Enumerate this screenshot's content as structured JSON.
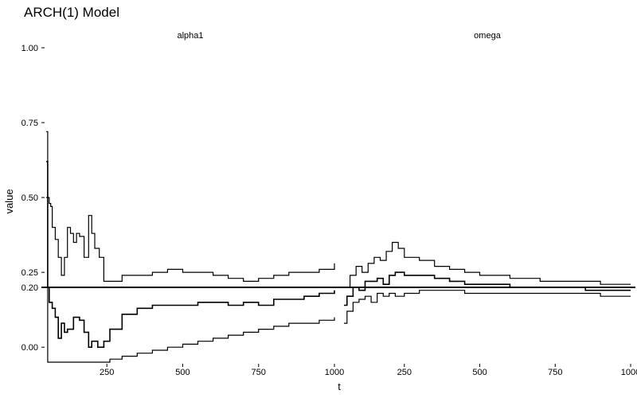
{
  "chart_data": {
    "type": "line",
    "title": "ARCH(1) Model",
    "xlabel": "t",
    "ylabel": "value",
    "xlim": [
      50,
      1000
    ],
    "ylim": [
      -0.05,
      1.0
    ],
    "x_ticks": [
      250,
      500,
      750,
      1000
    ],
    "y_tick_values": [
      0.0,
      0.2,
      0.25,
      0.5,
      0.75,
      1.0
    ],
    "y_tick_labels": [
      "0.00",
      "0.20",
      "0.25",
      "0.50",
      "0.75",
      "1.00"
    ],
    "reference_line": 0.2,
    "grid": false,
    "facets": [
      {
        "label": "alpha1",
        "series": [
          {
            "role": "upper",
            "points": [
              [
                50,
                0.72
              ],
              [
                55,
                0.5
              ],
              [
                60,
                0.48
              ],
              [
                65,
                0.47
              ],
              [
                70,
                0.4
              ],
              [
                80,
                0.36
              ],
              [
                90,
                0.3
              ],
              [
                100,
                0.24
              ],
              [
                110,
                0.3
              ],
              [
                120,
                0.4
              ],
              [
                130,
                0.38
              ],
              [
                140,
                0.35
              ],
              [
                150,
                0.38
              ],
              [
                160,
                0.37
              ],
              [
                175,
                0.3
              ],
              [
                190,
                0.44
              ],
              [
                200,
                0.38
              ],
              [
                210,
                0.33
              ],
              [
                225,
                0.3
              ],
              [
                240,
                0.22
              ],
              [
                250,
                0.22
              ],
              [
                270,
                0.22
              ],
              [
                300,
                0.24
              ],
              [
                350,
                0.24
              ],
              [
                400,
                0.25
              ],
              [
                450,
                0.26
              ],
              [
                500,
                0.25
              ],
              [
                550,
                0.25
              ],
              [
                600,
                0.24
              ],
              [
                650,
                0.23
              ],
              [
                700,
                0.22
              ],
              [
                750,
                0.23
              ],
              [
                800,
                0.24
              ],
              [
                850,
                0.25
              ],
              [
                900,
                0.25
              ],
              [
                950,
                0.26
              ],
              [
                1000,
                0.28
              ]
            ]
          },
          {
            "role": "estimate",
            "points": [
              [
                50,
                0.62
              ],
              [
                55,
                0.2
              ],
              [
                60,
                0.15
              ],
              [
                70,
                0.13
              ],
              [
                80,
                0.1
              ],
              [
                90,
                0.03
              ],
              [
                100,
                0.08
              ],
              [
                110,
                0.05
              ],
              [
                120,
                0.06
              ],
              [
                140,
                0.1
              ],
              [
                160,
                0.09
              ],
              [
                175,
                0.05
              ],
              [
                190,
                0.0
              ],
              [
                200,
                0.02
              ],
              [
                220,
                0.0
              ],
              [
                240,
                0.02
              ],
              [
                260,
                0.06
              ],
              [
                300,
                0.11
              ],
              [
                350,
                0.13
              ],
              [
                400,
                0.14
              ],
              [
                450,
                0.14
              ],
              [
                500,
                0.14
              ],
              [
                550,
                0.15
              ],
              [
                600,
                0.15
              ],
              [
                650,
                0.14
              ],
              [
                700,
                0.15
              ],
              [
                750,
                0.14
              ],
              [
                800,
                0.16
              ],
              [
                850,
                0.16
              ],
              [
                900,
                0.17
              ],
              [
                950,
                0.18
              ],
              [
                1000,
                0.19
              ]
            ]
          },
          {
            "role": "lower",
            "points": [
              [
                50,
                0.5
              ],
              [
                55,
                -0.05
              ],
              [
                100,
                -0.05
              ],
              [
                150,
                -0.05
              ],
              [
                200,
                -0.05
              ],
              [
                240,
                -0.05
              ],
              [
                260,
                -0.04
              ],
              [
                300,
                -0.03
              ],
              [
                350,
                -0.02
              ],
              [
                400,
                -0.01
              ],
              [
                450,
                0.0
              ],
              [
                500,
                0.01
              ],
              [
                550,
                0.02
              ],
              [
                600,
                0.03
              ],
              [
                650,
                0.04
              ],
              [
                700,
                0.05
              ],
              [
                750,
                0.06
              ],
              [
                800,
                0.07
              ],
              [
                850,
                0.08
              ],
              [
                900,
                0.08
              ],
              [
                950,
                0.09
              ],
              [
                1000,
                0.1
              ]
            ]
          }
        ]
      },
      {
        "label": "omega",
        "series": [
          {
            "role": "upper",
            "points": [
              [
                50,
                0.2
              ],
              [
                70,
                0.24
              ],
              [
                90,
                0.27
              ],
              [
                110,
                0.25
              ],
              [
                130,
                0.28
              ],
              [
                150,
                0.3
              ],
              [
                170,
                0.29
              ],
              [
                190,
                0.32
              ],
              [
                210,
                0.35
              ],
              [
                230,
                0.33
              ],
              [
                250,
                0.3
              ],
              [
                300,
                0.29
              ],
              [
                350,
                0.27
              ],
              [
                400,
                0.26
              ],
              [
                450,
                0.25
              ],
              [
                500,
                0.24
              ],
              [
                550,
                0.24
              ],
              [
                600,
                0.23
              ],
              [
                650,
                0.23
              ],
              [
                700,
                0.22
              ],
              [
                750,
                0.22
              ],
              [
                800,
                0.22
              ],
              [
                850,
                0.22
              ],
              [
                900,
                0.21
              ],
              [
                950,
                0.21
              ],
              [
                1000,
                0.21
              ]
            ]
          },
          {
            "role": "estimate",
            "points": [
              [
                50,
                0.14
              ],
              [
                60,
                0.17
              ],
              [
                80,
                0.2
              ],
              [
                100,
                0.19
              ],
              [
                120,
                0.22
              ],
              [
                140,
                0.22
              ],
              [
                160,
                0.23
              ],
              [
                180,
                0.21
              ],
              [
                200,
                0.24
              ],
              [
                220,
                0.25
              ],
              [
                250,
                0.24
              ],
              [
                300,
                0.24
              ],
              [
                350,
                0.23
              ],
              [
                400,
                0.22
              ],
              [
                450,
                0.21
              ],
              [
                500,
                0.21
              ],
              [
                550,
                0.21
              ],
              [
                600,
                0.2
              ],
              [
                650,
                0.2
              ],
              [
                700,
                0.2
              ],
              [
                750,
                0.2
              ],
              [
                800,
                0.2
              ],
              [
                850,
                0.19
              ],
              [
                900,
                0.19
              ],
              [
                950,
                0.19
              ],
              [
                1000,
                0.19
              ]
            ]
          },
          {
            "role": "lower",
            "points": [
              [
                50,
                0.08
              ],
              [
                60,
                0.12
              ],
              [
                80,
                0.15
              ],
              [
                100,
                0.16
              ],
              [
                120,
                0.17
              ],
              [
                140,
                0.15
              ],
              [
                160,
                0.18
              ],
              [
                180,
                0.17
              ],
              [
                200,
                0.18
              ],
              [
                220,
                0.17
              ],
              [
                250,
                0.18
              ],
              [
                300,
                0.19
              ],
              [
                350,
                0.19
              ],
              [
                400,
                0.19
              ],
              [
                450,
                0.18
              ],
              [
                500,
                0.18
              ],
              [
                550,
                0.18
              ],
              [
                600,
                0.18
              ],
              [
                650,
                0.18
              ],
              [
                700,
                0.18
              ],
              [
                750,
                0.18
              ],
              [
                800,
                0.18
              ],
              [
                850,
                0.18
              ],
              [
                900,
                0.17
              ],
              [
                950,
                0.17
              ],
              [
                1000,
                0.17
              ]
            ]
          }
        ]
      }
    ]
  }
}
